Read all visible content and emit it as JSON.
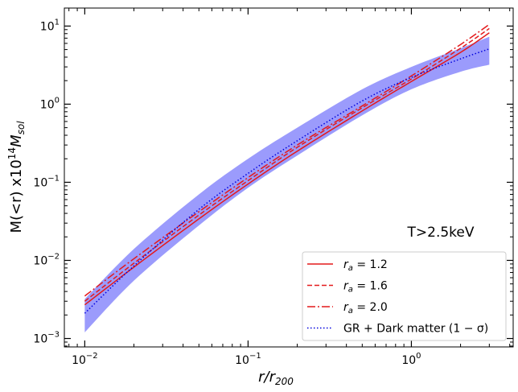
{
  "chart_data": {
    "type": "line",
    "xscale": "log",
    "yscale": "log",
    "xlim": [
      0.0075,
      4.2
    ],
    "ylim": [
      0.00078,
      17
    ],
    "xlabel_main": "r/r",
    "xlabel_sub": "200",
    "ylabel_main": "M(<r) x10",
    "ylabel_sup": "14",
    "ylabel_unit": "M",
    "ylabel_unit_sub": "sol",
    "annotation": "T>2.5keV",
    "legend_position": "lower-right",
    "x_ticks": [
      {
        "value": 0.01,
        "base": "10",
        "exp": "−2"
      },
      {
        "value": 0.1,
        "base": "10",
        "exp": "−1"
      },
      {
        "value": 1,
        "base": "10",
        "exp": "0"
      }
    ],
    "y_ticks": [
      {
        "value": 0.001,
        "base": "10",
        "exp": "−3"
      },
      {
        "value": 0.01,
        "base": "10",
        "exp": "−2"
      },
      {
        "value": 0.1,
        "base": "10",
        "exp": "−1"
      },
      {
        "value": 1,
        "base": "10",
        "exp": "0"
      },
      {
        "value": 10,
        "base": "10",
        "exp": "1"
      }
    ],
    "band": {
      "name": "GR + Dark matter band",
      "color": "#9b9bfc",
      "x": [
        0.01,
        0.02,
        0.05,
        0.1,
        0.2,
        0.5,
        1.0,
        2.0,
        3.0
      ],
      "lower": [
        0.0012,
        0.0055,
        0.028,
        0.085,
        0.22,
        0.72,
        1.55,
        2.6,
        3.2
      ],
      "upper": [
        0.0032,
        0.014,
        0.07,
        0.2,
        0.5,
        1.55,
        3.0,
        5.2,
        7.3
      ]
    },
    "series": [
      {
        "name_main": "r",
        "name_sub": "a",
        "name_rest": " = 1.2",
        "color": "#e41a1c",
        "dash": "",
        "x": [
          0.01,
          0.02,
          0.05,
          0.1,
          0.2,
          0.5,
          1.0,
          2.0,
          3.0
        ],
        "values": [
          0.0027,
          0.0082,
          0.034,
          0.095,
          0.25,
          0.82,
          1.95,
          4.6,
          8.2
        ]
      },
      {
        "name_main": "r",
        "name_sub": "a",
        "name_rest": " = 1.6",
        "color": "#e41a1c",
        "dash": "6,3",
        "x": [
          0.01,
          0.02,
          0.05,
          0.1,
          0.2,
          0.5,
          1.0,
          2.0,
          3.0
        ],
        "values": [
          0.003,
          0.0092,
          0.038,
          0.105,
          0.28,
          0.9,
          2.1,
          5.2,
          9.3
        ]
      },
      {
        "name_main": "r",
        "name_sub": "a",
        "name_rest": " = 2.0",
        "color": "#e41a1c",
        "dash": "10,3,2,3",
        "x": [
          0.01,
          0.02,
          0.05,
          0.1,
          0.2,
          0.5,
          1.0,
          2.0,
          3.0
        ],
        "values": [
          0.0035,
          0.0105,
          0.042,
          0.115,
          0.3,
          0.95,
          2.3,
          5.8,
          10.5
        ]
      },
      {
        "name_main": "GR + Dark matter (1",
        "name_sub": "",
        "name_rest": " − σ)",
        "color": "#0000dd",
        "dash": "1.5,2.5",
        "x": [
          0.01,
          0.02,
          0.05,
          0.1,
          0.2,
          0.5,
          1.0,
          2.0,
          3.0
        ],
        "values": [
          0.0021,
          0.0085,
          0.045,
          0.13,
          0.34,
          1.1,
          2.2,
          3.8,
          5.1
        ]
      }
    ]
  }
}
